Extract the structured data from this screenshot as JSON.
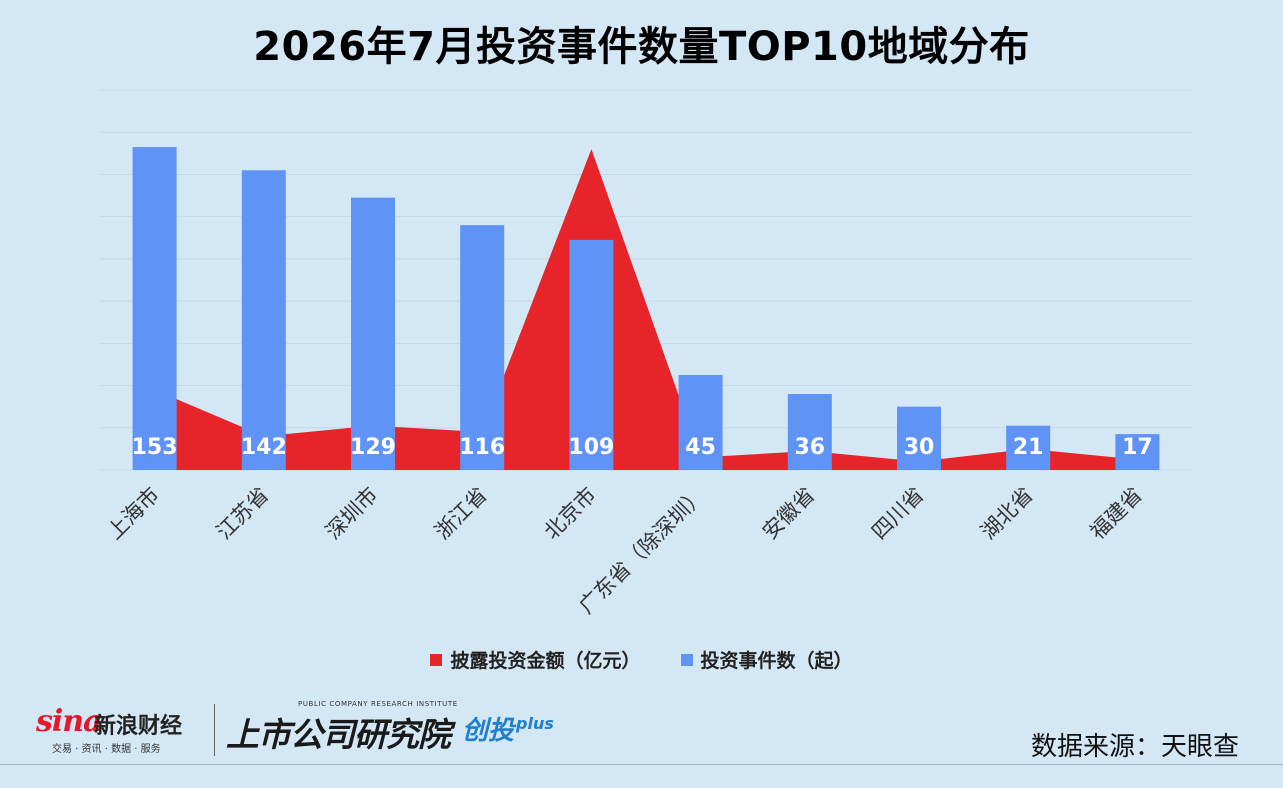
{
  "title": "2026年7月投资事件数量TOP10地域分布",
  "colors": {
    "background": "#d4e7f5",
    "amount": "#e8242b",
    "count": "#6093f6",
    "grid": "#c6d9e7"
  },
  "chart_data": {
    "type": "bar",
    "title": "2026年7月投资事件数量TOP10地域分布",
    "categories": [
      "上海市",
      "江苏省",
      "深圳市",
      "浙江省",
      "北京市",
      "广东省（除深圳）",
      "安徽省",
      "四川省",
      "湖北省",
      "福建省"
    ],
    "series": [
      {
        "name": "披露投资金额（亿元）",
        "type": "area",
        "color": "#e8242b",
        "values": [
          38,
          16,
          21,
          18,
          152,
          6,
          9,
          4,
          10,
          5
        ]
      },
      {
        "name": "投资事件数（起）",
        "type": "bar",
        "color": "#6093f6",
        "values": [
          153,
          142,
          129,
          116,
          109,
          45,
          36,
          30,
          21,
          17
        ],
        "data_labels": [
          "153",
          "142",
          "129",
          "116",
          "109",
          "45",
          "36",
          "30",
          "21",
          "17"
        ]
      }
    ],
    "ylim": [
      0,
      180
    ],
    "grid": true,
    "legend": "bottom"
  },
  "legend": {
    "amount_label": "披露投资金额（亿元）",
    "count_label": "投资事件数（起）"
  },
  "footer": {
    "sina_word": "sina",
    "sina_cn": "新浪财经",
    "sina_sub": "交易 · 资讯 · 数据 · 服务",
    "institute_small": "PUBLIC COMPANY RESEARCH INSTITUTE",
    "institute_main": "上市公司研究院",
    "plus_main": "创投",
    "plus_sup": "plus",
    "source": "数据来源：天眼查"
  }
}
